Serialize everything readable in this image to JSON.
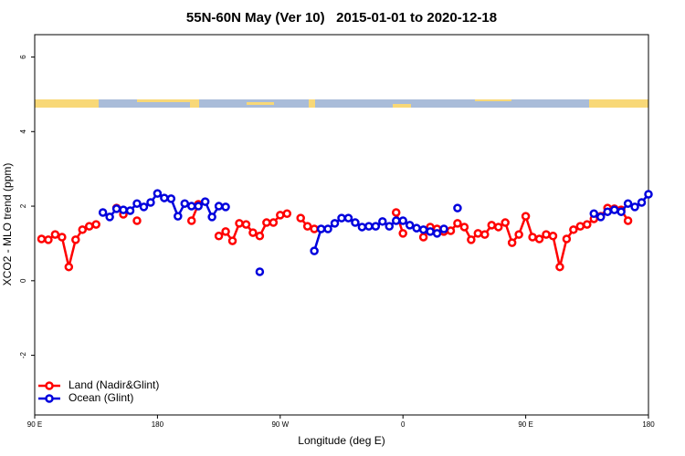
{
  "chart_data": {
    "type": "line",
    "title": "55N-60N May (Ver 10)   2015-01-01 to 2020-12-18",
    "x_label": "Longitude (deg E)",
    "y_label": "XCO2 - MLO trend (ppm)",
    "x": [
      -265,
      -260,
      -255,
      -250,
      -245,
      -240,
      -235,
      -230,
      -225,
      -220,
      -215,
      -210,
      -205,
      -200,
      -195,
      -190,
      -185,
      -180,
      -175,
      -170,
      -165,
      -160,
      -155,
      -150,
      -145,
      -140,
      -135,
      -130,
      -125,
      -120,
      -115,
      -110,
      -105,
      -100,
      -95,
      -90,
      -85,
      -80,
      -75,
      -70,
      -65,
      -60,
      -55,
      -50,
      -45,
      -40,
      -35,
      -30,
      -25,
      -20,
      -15,
      -10,
      -5,
      0,
      5,
      10,
      15,
      20,
      25,
      30,
      35,
      40,
      45,
      50,
      55,
      60,
      65,
      70,
      75,
      80,
      85,
      90,
      95,
      100,
      105,
      110,
      115,
      120,
      125,
      130,
      135,
      140,
      145,
      150,
      155,
      160,
      165,
      170,
      175,
      180
    ],
    "series": [
      {
        "name": "Land (Nadir&Glint)",
        "color": "#ff0000",
        "values": [
          1.12,
          1.1,
          1.24,
          1.17,
          0.37,
          1.1,
          1.37,
          1.46,
          1.51,
          null,
          null,
          1.95,
          1.78,
          null,
          1.61,
          null,
          null,
          null,
          null,
          null,
          null,
          null,
          1.61,
          2.05,
          null,
          null,
          1.2,
          1.32,
          1.07,
          1.54,
          1.51,
          1.29,
          1.2,
          1.56,
          1.56,
          1.76,
          1.8,
          null,
          1.68,
          1.46,
          1.39,
          null,
          null,
          null,
          null,
          null,
          null,
          null,
          null,
          null,
          null,
          null,
          1.83,
          1.27,
          null,
          null,
          1.17,
          1.44,
          1.39,
          1.32,
          1.34,
          1.54,
          1.44,
          1.1,
          1.27,
          1.24,
          1.49,
          1.44,
          1.56,
          1.02,
          1.24,
          1.73,
          1.17,
          1.12,
          1.24,
          1.2,
          0.37,
          1.12,
          1.37,
          1.46,
          1.51,
          1.66,
          1.73,
          1.95,
          1.93,
          1.9,
          1.61,
          null,
          null,
          null
        ]
      },
      {
        "name": "Ocean (Glint)",
        "color": "#0000dd",
        "values": [
          null,
          null,
          null,
          null,
          null,
          null,
          null,
          null,
          null,
          1.83,
          1.71,
          1.93,
          1.9,
          1.88,
          2.07,
          1.98,
          2.1,
          2.34,
          2.22,
          2.2,
          1.73,
          2.07,
          2.0,
          2.0,
          2.12,
          1.71,
          2.0,
          1.98,
          null,
          null,
          null,
          null,
          0.24,
          null,
          null,
          null,
          null,
          null,
          null,
          null,
          0.8,
          1.39,
          1.39,
          1.54,
          1.68,
          1.68,
          1.56,
          1.44,
          1.46,
          1.46,
          1.59,
          1.46,
          1.61,
          1.61,
          1.49,
          1.41,
          1.37,
          1.32,
          1.27,
          1.39,
          null,
          1.95,
          null,
          null,
          null,
          null,
          null,
          null,
          null,
          null,
          null,
          null,
          null,
          null,
          null,
          null,
          null,
          null,
          null,
          null,
          null,
          1.8,
          1.71,
          1.85,
          1.9,
          1.85,
          2.07,
          1.98,
          2.1,
          2.32
        ]
      }
    ],
    "xlim": [
      -270,
      180
    ],
    "xticks": [
      {
        "value": -270,
        "label": "90 E"
      },
      {
        "value": -180,
        "label": "180"
      },
      {
        "value": -90,
        "label": "90 W"
      },
      0,
      {
        "value": 90,
        "label": "90 E"
      },
      180
    ],
    "ylim": [
      -3.6,
      6.6
    ],
    "yticks": [
      -2,
      0,
      2,
      4,
      6
    ],
    "legend": "bottom-left"
  }
}
